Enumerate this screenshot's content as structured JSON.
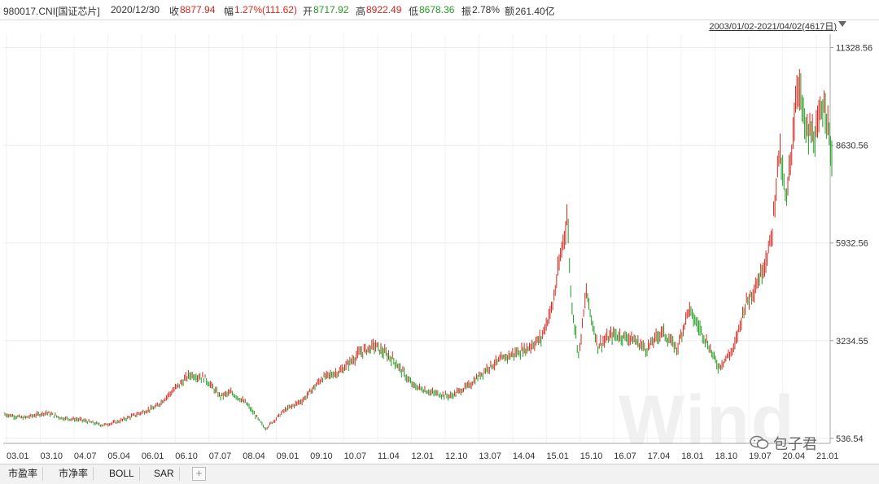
{
  "header": {
    "code": "980017.CNI[国证芯片]",
    "date": "2020/12/30",
    "close_label": "收",
    "close_value": "8877.94",
    "change_label": "幅",
    "change_value": "1.27%(111.62)",
    "open_label": "开",
    "open_value": "8717.92",
    "high_label": "高",
    "high_value": "8922.49",
    "low_label": "低",
    "low_value": "8678.36",
    "amplitude_label": "振",
    "amplitude_value": "2.78%",
    "amount_label": "额",
    "amount_value": "261.40亿"
  },
  "range_label": "2003/01/02-2021/04/02(4617日)",
  "toolbar": {
    "items": [
      "市盈率",
      "市净率",
      "BOLL",
      "SAR"
    ]
  },
  "watermark": "Wind",
  "wechat_label": "包子君",
  "colors": {
    "up": "#d2281e",
    "down": "#229a22",
    "grid": "#ececec"
  },
  "chart_data": {
    "type": "line",
    "title": "",
    "y_ticks": [
      11328.56,
      8630.56,
      5932.56,
      3234.55,
      536.54
    ],
    "ylim": [
      400,
      11700
    ],
    "x_ticks": [
      "03.01",
      "03.10",
      "04.07",
      "05.04",
      "06.01",
      "06.10",
      "07.07",
      "08.04",
      "09.01",
      "09.10",
      "10.07",
      "11.04",
      "12.01",
      "12.10",
      "13.07",
      "14.04",
      "15.01",
      "15.10",
      "16.07",
      "17.04",
      "18.01",
      "18.10",
      "19.07",
      "20.04",
      "21.01"
    ],
    "x_range": [
      "2003-01-02",
      "2021-04-02"
    ],
    "series": [
      {
        "x": [
          "2003-01",
          "2003-06",
          "2003-12",
          "2004-04",
          "2004-09",
          "2005-03",
          "2005-07",
          "2005-12",
          "2006-05",
          "2006-09",
          "2007-02",
          "2007-06",
          "2007-10",
          "2008-01",
          "2008-05",
          "2008-10",
          "2009-03",
          "2009-08",
          "2010-01",
          "2010-06",
          "2010-11",
          "2011-03",
          "2011-08",
          "2012-01",
          "2012-06",
          "2012-11",
          "2013-04",
          "2013-09",
          "2014-02",
          "2014-07",
          "2014-11",
          "2015-02",
          "2015-06",
          "2015-07",
          "2015-09",
          "2015-11",
          "2015-12",
          "2016-02",
          "2016-06",
          "2016-11",
          "2017-03",
          "2017-07",
          "2017-11",
          "2018-02",
          "2018-06",
          "2018-10",
          "2019-02",
          "2019-05",
          "2019-09",
          "2019-12",
          "2020-02",
          "2020-04",
          "2020-07",
          "2020-09",
          "2020-12",
          "2021-02",
          "2021-04"
        ],
        "values": [
          1200,
          1100,
          1250,
          1100,
          1050,
          900,
          1000,
          1200,
          1400,
          1800,
          2300,
          2200,
          1700,
          1800,
          1500,
          800,
          1300,
          1600,
          2200,
          2400,
          2900,
          3100,
          2700,
          2000,
          1800,
          1700,
          2000,
          2500,
          2800,
          3000,
          3300,
          4200,
          6700,
          4400,
          2800,
          4600,
          4000,
          3100,
          3400,
          3300,
          3000,
          3500,
          3000,
          4100,
          3400,
          2500,
          3000,
          4200,
          5000,
          6000,
          8500,
          7000,
          10500,
          9000,
          8878,
          10000,
          8300
        ]
      }
    ]
  }
}
